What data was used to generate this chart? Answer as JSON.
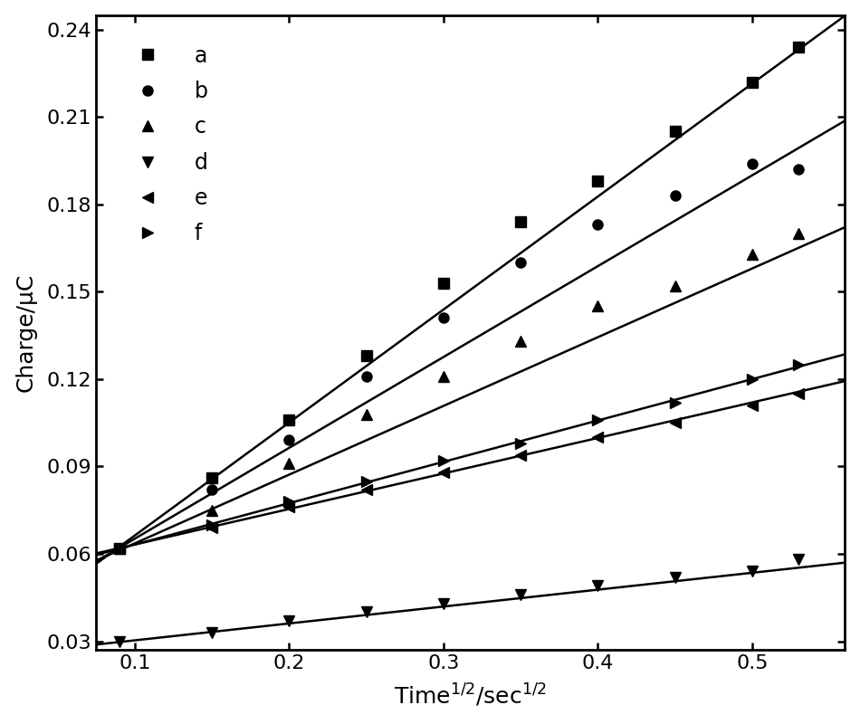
{
  "title": "",
  "xlabel": "Time$^{1/2}$/sec$^{1/2}$",
  "ylabel": "Charge/μC",
  "xlim": [
    0.075,
    0.56
  ],
  "ylim": [
    0.027,
    0.245
  ],
  "xticks": [
    0.1,
    0.2,
    0.3,
    0.4,
    0.5
  ],
  "yticks": [
    0.03,
    0.06,
    0.09,
    0.12,
    0.15,
    0.18,
    0.21,
    0.24
  ],
  "series": [
    {
      "label": "a",
      "marker": "s",
      "slope": 0.388,
      "intercept": 0.0275,
      "data_x": [
        0.09,
        0.15,
        0.2,
        0.25,
        0.3,
        0.35,
        0.4,
        0.45,
        0.5,
        0.53
      ],
      "data_y": [
        0.062,
        0.086,
        0.106,
        0.128,
        0.153,
        0.174,
        0.188,
        0.205,
        0.222,
        0.234
      ]
    },
    {
      "label": "b",
      "marker": "o",
      "slope": 0.312,
      "intercept": 0.034,
      "data_x": [
        0.09,
        0.15,
        0.2,
        0.25,
        0.3,
        0.35,
        0.4,
        0.45,
        0.5,
        0.53
      ],
      "data_y": [
        0.062,
        0.082,
        0.099,
        0.121,
        0.141,
        0.16,
        0.173,
        0.183,
        0.194,
        0.192
      ]
    },
    {
      "label": "c",
      "marker": "^",
      "slope": 0.236,
      "intercept": 0.04,
      "data_x": [
        0.09,
        0.15,
        0.2,
        0.25,
        0.3,
        0.35,
        0.4,
        0.45,
        0.5,
        0.53
      ],
      "data_y": [
        0.062,
        0.075,
        0.091,
        0.108,
        0.121,
        0.133,
        0.145,
        0.152,
        0.163,
        0.17
      ]
    },
    {
      "label": "d",
      "marker": "v",
      "slope": 0.058,
      "intercept": 0.0245,
      "data_x": [
        0.09,
        0.15,
        0.2,
        0.25,
        0.3,
        0.35,
        0.4,
        0.45,
        0.5,
        0.53
      ],
      "data_y": [
        0.03,
        0.033,
        0.037,
        0.04,
        0.043,
        0.046,
        0.049,
        0.052,
        0.054,
        0.058
      ]
    },
    {
      "label": "e",
      "marker": "<",
      "slope": 0.122,
      "intercept": 0.051,
      "data_x": [
        0.09,
        0.15,
        0.2,
        0.25,
        0.3,
        0.35,
        0.4,
        0.45,
        0.5,
        0.53
      ],
      "data_y": [
        0.062,
        0.069,
        0.076,
        0.082,
        0.088,
        0.094,
        0.1,
        0.105,
        0.111,
        0.115
      ]
    },
    {
      "label": "f",
      "marker": ">",
      "slope": 0.142,
      "intercept": 0.049,
      "data_x": [
        0.09,
        0.15,
        0.2,
        0.25,
        0.3,
        0.35,
        0.4,
        0.45,
        0.5,
        0.53
      ],
      "data_y": [
        0.062,
        0.07,
        0.078,
        0.085,
        0.092,
        0.098,
        0.106,
        0.112,
        0.12,
        0.125
      ]
    }
  ],
  "line_color": "#000000",
  "marker_color": "#000000",
  "marker_size": 8,
  "line_width": 1.8,
  "legend_fontsize": 17,
  "axis_fontsize": 18,
  "tick_fontsize": 16,
  "background_color": "#ffffff",
  "figure_bg": "#ffffff",
  "spine_linewidth": 2.0
}
